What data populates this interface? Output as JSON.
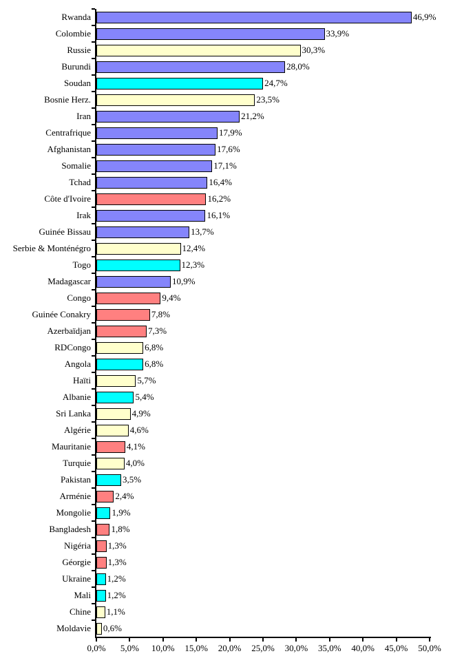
{
  "palette": {
    "periwinkle": "#8585FB",
    "cyan": "#00FFFF",
    "ivory": "#FFFFCC",
    "coral": "#FF8080"
  },
  "chart_data": {
    "type": "bar",
    "orientation": "horizontal",
    "grid": false,
    "legend": false,
    "xlim": [
      0,
      50
    ],
    "categories": [
      "Rwanda",
      "Colombie",
      "Russie",
      "Burundi",
      "Soudan",
      "Bosnie Herz.",
      "Iran",
      "Centrafrique",
      "Afghanistan",
      "Somalie",
      "Tchad",
      "Côte d'Ivoire",
      "Irak",
      "Guinée Bissau",
      "Serbie & Monténégro",
      "Togo",
      "Madagascar",
      "Congo",
      "Guinée Conakry",
      "Azerbaïdjan",
      "RDCongo",
      "Angola",
      "Haïti",
      "Albanie",
      "Sri Lanka",
      "Algérie",
      "Mauritanie",
      "Turquie",
      "Pakistan",
      "Arménie",
      "Mongolie",
      "Bangladesh",
      "Nigéria",
      "Géorgie",
      "Ukraine",
      "Mali",
      "Chine",
      "Moldavie"
    ],
    "values": [
      46.9,
      33.9,
      30.3,
      28.0,
      24.7,
      23.5,
      21.2,
      17.9,
      17.6,
      17.1,
      16.4,
      16.2,
      16.1,
      13.7,
      12.4,
      12.3,
      10.9,
      9.4,
      7.8,
      7.3,
      6.8,
      6.8,
      5.7,
      5.4,
      4.9,
      4.6,
      4.1,
      4.0,
      3.5,
      2.4,
      1.9,
      1.8,
      1.3,
      1.3,
      1.2,
      1.2,
      1.1,
      0.6
    ],
    "value_labels": [
      "46,9%",
      "33,9%",
      "30,3%",
      "28,0%",
      "24,7%",
      "23,5%",
      "21,2%",
      "17,9%",
      "17,6%",
      "17,1%",
      "16,4%",
      "16,2%",
      "16,1%",
      "13,7%",
      "12,4%",
      "12,3%",
      "10,9%",
      "9,4%",
      "7,8%",
      "7,3%",
      "6,8%",
      "6,8%",
      "5,7%",
      "5,4%",
      "4,9%",
      "4,6%",
      "4,1%",
      "4,0%",
      "3,5%",
      "2,4%",
      "1,9%",
      "1,8%",
      "1,3%",
      "1,3%",
      "1,2%",
      "1,2%",
      "1,1%",
      "0,6%"
    ],
    "bar_colors": [
      "periwinkle",
      "periwinkle",
      "ivory",
      "periwinkle",
      "cyan",
      "ivory",
      "periwinkle",
      "periwinkle",
      "periwinkle",
      "periwinkle",
      "periwinkle",
      "coral",
      "periwinkle",
      "periwinkle",
      "ivory",
      "cyan",
      "periwinkle",
      "coral",
      "coral",
      "coral",
      "ivory",
      "cyan",
      "ivory",
      "cyan",
      "ivory",
      "ivory",
      "coral",
      "ivory",
      "cyan",
      "coral",
      "cyan",
      "coral",
      "coral",
      "coral",
      "cyan",
      "cyan",
      "ivory",
      "ivory"
    ],
    "x_tick_labels": [
      "0,0%",
      "5,0%",
      "10,0%",
      "15,0%",
      "20,0%",
      "25,0%",
      "30,0%",
      "35,0%",
      "40,0%",
      "45,0%",
      "50,0%"
    ]
  }
}
